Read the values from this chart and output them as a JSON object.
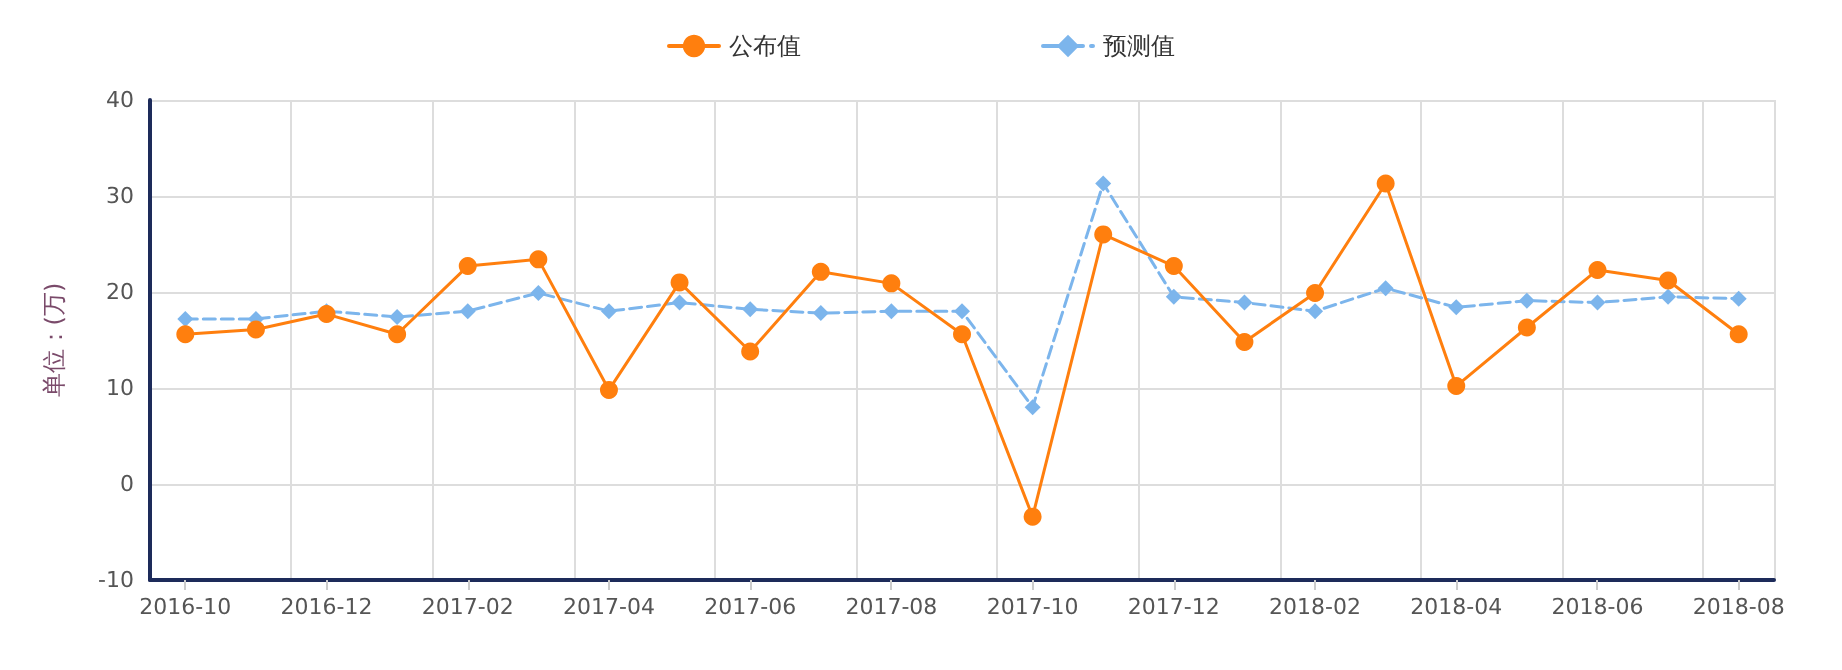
{
  "chart_data": {
    "type": "line",
    "ylabel": "单位：(万)",
    "categories": [
      "2016-10",
      null,
      "2016-12",
      null,
      "2017-02",
      null,
      "2017-04",
      null,
      "2017-06",
      null,
      "2017-08",
      null,
      "2017-10",
      null,
      "2017-12",
      null,
      "2018-02",
      null,
      "2018-04",
      null,
      "2018-06",
      null,
      "2018-08"
    ],
    "series": [
      {
        "name": "公布值",
        "color": "#ff7f0e",
        "marker": "circle",
        "line_style": "solid",
        "values": [
          15.6,
          16.1,
          17.7,
          15.6,
          22.7,
          23.4,
          9.8,
          21.0,
          13.8,
          22.1,
          20.9,
          15.6,
          -3.4,
          26.0,
          22.7,
          14.8,
          19.9,
          31.3,
          10.2,
          16.3,
          22.3,
          21.2,
          15.6
        ]
      },
      {
        "name": "预测值",
        "color": "#7cb5ec",
        "marker": "diamond",
        "line_style": "dashed",
        "values": [
          17.2,
          17.2,
          18.0,
          17.4,
          18.0,
          19.9,
          18.0,
          18.9,
          18.2,
          17.8,
          18.0,
          18.0,
          8.0,
          31.3,
          19.5,
          18.9,
          18.0,
          20.4,
          18.4,
          19.1,
          18.9,
          19.5,
          19.3
        ]
      }
    ],
    "ylim": [
      -10,
      40
    ],
    "yticks": [
      -10,
      0,
      10,
      20,
      30,
      40
    ],
    "grid": true,
    "legend": "top"
  }
}
